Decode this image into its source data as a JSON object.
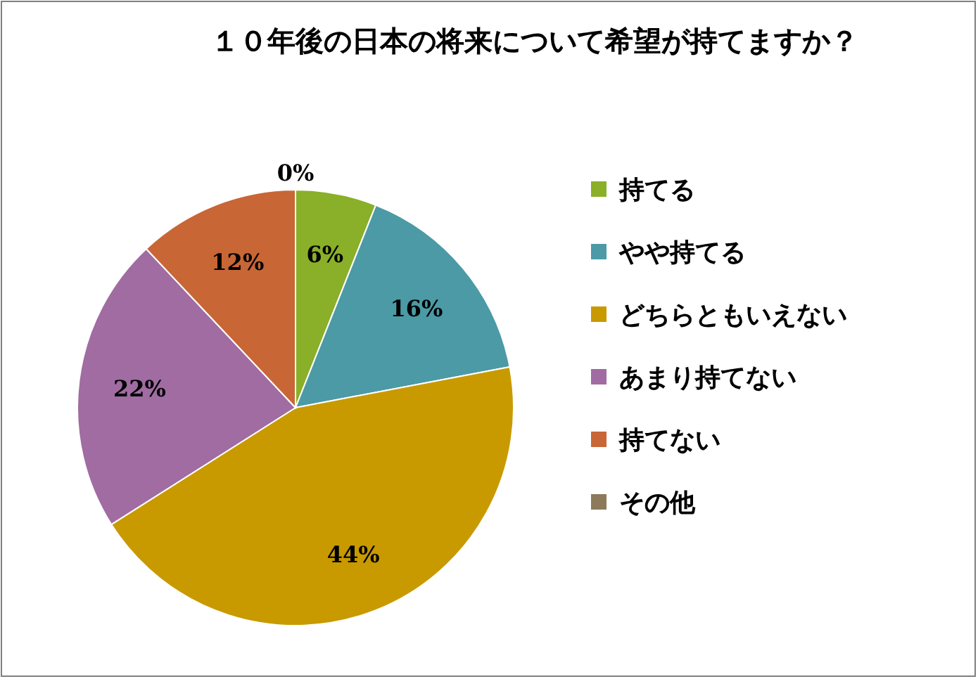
{
  "chart_data": {
    "type": "pie",
    "title": "１０年後の日本の将来について希望が持てますか？",
    "categories": [
      "持てる",
      "やや持てる",
      "どちらともいえない",
      "あまり持てない",
      "持てない",
      "その他"
    ],
    "values": [
      6,
      16,
      44,
      22,
      12,
      0
    ],
    "colors": [
      "#8aaf28",
      "#4b9aa6",
      "#c89a00",
      "#a06ca2",
      "#c86636",
      "#8c7a5a"
    ],
    "value_labels": [
      "6%",
      "16%",
      "44%",
      "22%",
      "12%",
      "0%"
    ],
    "legend": "right"
  }
}
